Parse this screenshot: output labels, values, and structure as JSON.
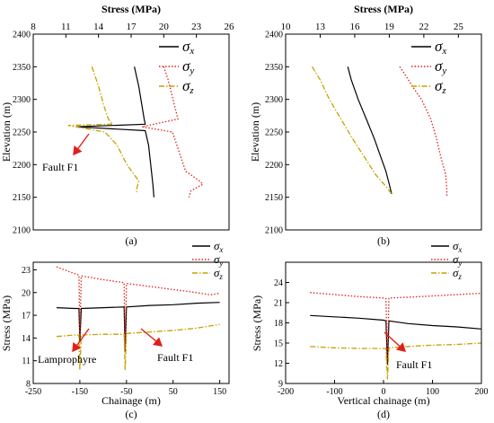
{
  "chart_data": [
    {
      "panel": "(a)",
      "type": "line",
      "xlabel": "Stress (MPa)",
      "ylabel": "Elevation (m)",
      "xlim": [
        8,
        26
      ],
      "ylim": [
        2100,
        2400
      ],
      "xticks": [
        8,
        11,
        14,
        17,
        20,
        23,
        26
      ],
      "yticks": [
        2100,
        2150,
        2200,
        2250,
        2300,
        2350,
        2400
      ],
      "legend": {
        "position": "top-right"
      },
      "series": [
        {
          "name": "σx",
          "color": "#000000",
          "dash": "solid",
          "points": [
            [
              17.3,
              2350
            ],
            [
              17.7,
              2320
            ],
            [
              18.0,
              2290
            ],
            [
              18.2,
              2270
            ],
            [
              18.3,
              2262
            ],
            [
              12.0,
              2258
            ],
            [
              18.3,
              2252
            ],
            [
              18.6,
              2230
            ],
            [
              18.8,
              2200
            ],
            [
              19.0,
              2170
            ],
            [
              19.1,
              2150
            ]
          ]
        },
        {
          "name": "σy",
          "color": "#e0201b",
          "dash": "dot",
          "points": [
            [
              20.0,
              2350
            ],
            [
              20.4,
              2330
            ],
            [
              20.7,
              2310
            ],
            [
              21.0,
              2290
            ],
            [
              21.3,
              2270
            ],
            [
              18.0,
              2258
            ],
            [
              20.8,
              2250
            ],
            [
              21.4,
              2220
            ],
            [
              22.0,
              2190
            ],
            [
              23.3,
              2175
            ],
            [
              23.6,
              2170
            ],
            [
              22.5,
              2160
            ],
            [
              22.3,
              2150
            ]
          ]
        },
        {
          "name": "σz",
          "color": "#c8a200",
          "dash": "dashdot",
          "points": [
            [
              13.4,
              2350
            ],
            [
              14.0,
              2320
            ],
            [
              14.5,
              2290
            ],
            [
              14.9,
              2270
            ],
            [
              15.3,
              2262
            ],
            [
              11.2,
              2260
            ],
            [
              14.6,
              2250
            ],
            [
              15.7,
              2230
            ],
            [
              16.6,
              2200
            ],
            [
              17.7,
              2175
            ],
            [
              17.5,
              2162
            ],
            [
              17.5,
              2155
            ]
          ]
        }
      ],
      "annotations": [
        {
          "text": "Fault F1"
        }
      ]
    },
    {
      "panel": "(b)",
      "type": "line",
      "xlabel": "Stress (MPa)",
      "ylabel": "Elevation (m)",
      "xlim": [
        10,
        27
      ],
      "ylim": [
        2100,
        2400
      ],
      "xticks": [
        10,
        13,
        16,
        19,
        22,
        25
      ],
      "yticks": [
        2100,
        2150,
        2200,
        2250,
        2300,
        2350,
        2400
      ],
      "legend": {
        "position": "top-right"
      },
      "series": [
        {
          "name": "σx",
          "color": "#000000",
          "dash": "solid",
          "points": [
            [
              15.4,
              2350
            ],
            [
              15.7,
              2330
            ],
            [
              16.3,
              2300
            ],
            [
              17.0,
              2270
            ],
            [
              17.7,
              2240
            ],
            [
              18.3,
              2210
            ],
            [
              18.7,
              2190
            ],
            [
              19.0,
              2170
            ],
            [
              19.2,
              2155
            ]
          ]
        },
        {
          "name": "σy",
          "color": "#e0201b",
          "dash": "dot",
          "points": [
            [
              19.9,
              2350
            ],
            [
              20.3,
              2340
            ],
            [
              21.0,
              2320
            ],
            [
              21.8,
              2300
            ],
            [
              22.6,
              2270
            ],
            [
              23.1,
              2240
            ],
            [
              23.5,
              2210
            ],
            [
              23.9,
              2185
            ],
            [
              24.0,
              2160
            ],
            [
              24.0,
              2150
            ]
          ]
        },
        {
          "name": "σz",
          "color": "#c8a200",
          "dash": "dashdot",
          "points": [
            [
              12.3,
              2350
            ],
            [
              13.0,
              2330
            ],
            [
              13.8,
              2300
            ],
            [
              14.8,
              2270
            ],
            [
              15.8,
              2240
            ],
            [
              16.9,
              2210
            ],
            [
              17.8,
              2185
            ],
            [
              18.8,
              2165
            ],
            [
              19.2,
              2155
            ]
          ]
        }
      ]
    },
    {
      "panel": "(c)",
      "type": "line",
      "xlabel": "Chainage (m)",
      "ylabel": "Stress (MPa)",
      "xlim": [
        -250,
        170
      ],
      "ylim": [
        8,
        24
      ],
      "xticks": [
        -250,
        -150,
        -50,
        50,
        150
      ],
      "yticks": [
        8,
        11,
        14,
        17,
        20,
        23
      ],
      "legend": {
        "position": "top-right"
      },
      "series": [
        {
          "name": "σx",
          "color": "#000000",
          "dash": "solid",
          "points": [
            [
              -200,
              18.0
            ],
            [
              -160,
              17.9
            ],
            [
              -152,
              17.9
            ],
            [
              -150,
              13.6
            ],
            [
              -147,
              17.9
            ],
            [
              -100,
              18.0
            ],
            [
              -55,
              18.1
            ],
            [
              -53,
              12.2
            ],
            [
              -50,
              18.1
            ],
            [
              0,
              18.3
            ],
            [
              50,
              18.4
            ],
            [
              100,
              18.6
            ],
            [
              150,
              18.7
            ]
          ]
        },
        {
          "name": "σy",
          "color": "#e0201b",
          "dash": "dot",
          "points": [
            [
              -200,
              23.4
            ],
            [
              -175,
              22.8
            ],
            [
              -152,
              22.3
            ],
            [
              -150,
              14.3
            ],
            [
              -147,
              22.2
            ],
            [
              -100,
              21.7
            ],
            [
              -55,
              21.3
            ],
            [
              -53,
              12.5
            ],
            [
              -50,
              21.2
            ],
            [
              0,
              20.8
            ],
            [
              50,
              20.4
            ],
            [
              100,
              20.0
            ],
            [
              130,
              19.7
            ],
            [
              150,
              19.9
            ]
          ]
        },
        {
          "name": "σz",
          "color": "#c8a200",
          "dash": "dashdot",
          "points": [
            [
              -200,
              14.2
            ],
            [
              -160,
              14.4
            ],
            [
              -152,
              14.4
            ],
            [
              -150,
              9.8
            ],
            [
              -147,
              14.4
            ],
            [
              -100,
              14.5
            ],
            [
              -55,
              14.5
            ],
            [
              -53,
              9.8
            ],
            [
              -50,
              14.6
            ],
            [
              0,
              14.8
            ],
            [
              50,
              15.0
            ],
            [
              100,
              15.3
            ],
            [
              150,
              15.8
            ]
          ]
        }
      ],
      "annotations": [
        {
          "text": "Lamprophyre"
        },
        {
          "text": "Fault F1"
        }
      ]
    },
    {
      "panel": "(d)",
      "type": "line",
      "xlabel": "Vertical chainage (m)",
      "ylabel": "Stress (MPa)",
      "xlim": [
        -200,
        200
      ],
      "ylim": [
        9,
        27
      ],
      "xticks": [
        -200,
        -100,
        0,
        100,
        200
      ],
      "yticks": [
        9,
        12,
        15,
        18,
        21,
        24
      ],
      "legend": {
        "position": "top-right"
      },
      "series": [
        {
          "name": "σx",
          "color": "#000000",
          "dash": "solid",
          "points": [
            [
              -150,
              19.1
            ],
            [
              -100,
              18.9
            ],
            [
              -50,
              18.7
            ],
            [
              0,
              18.4
            ],
            [
              5,
              18.3
            ],
            [
              8,
              11.8
            ],
            [
              11,
              18.3
            ],
            [
              50,
              17.9
            ],
            [
              100,
              17.6
            ],
            [
              150,
              17.4
            ],
            [
              200,
              17.1
            ]
          ]
        },
        {
          "name": "σy",
          "color": "#e0201b",
          "dash": "dot",
          "points": [
            [
              -150,
              22.5
            ],
            [
              -100,
              22.2
            ],
            [
              -50,
              21.9
            ],
            [
              0,
              21.7
            ],
            [
              5,
              21.6
            ],
            [
              8,
              12.5
            ],
            [
              11,
              21.7
            ],
            [
              50,
              21.8
            ],
            [
              100,
              22.0
            ],
            [
              150,
              22.2
            ],
            [
              200,
              22.4
            ]
          ]
        },
        {
          "name": "σz",
          "color": "#c8a200",
          "dash": "dashdot",
          "points": [
            [
              -150,
              14.5
            ],
            [
              -100,
              14.3
            ],
            [
              -50,
              14.2
            ],
            [
              0,
              14.2
            ],
            [
              5,
              14.2
            ],
            [
              8,
              9.6
            ],
            [
              11,
              14.3
            ],
            [
              50,
              14.5
            ],
            [
              100,
              14.7
            ],
            [
              150,
              14.8
            ],
            [
              200,
              15.0
            ]
          ]
        }
      ],
      "annotations": [
        {
          "text": "Fault F1"
        }
      ]
    }
  ],
  "legend_labels": [
    "σx",
    "σy",
    "σz"
  ],
  "arrow_color": "#e0201b"
}
